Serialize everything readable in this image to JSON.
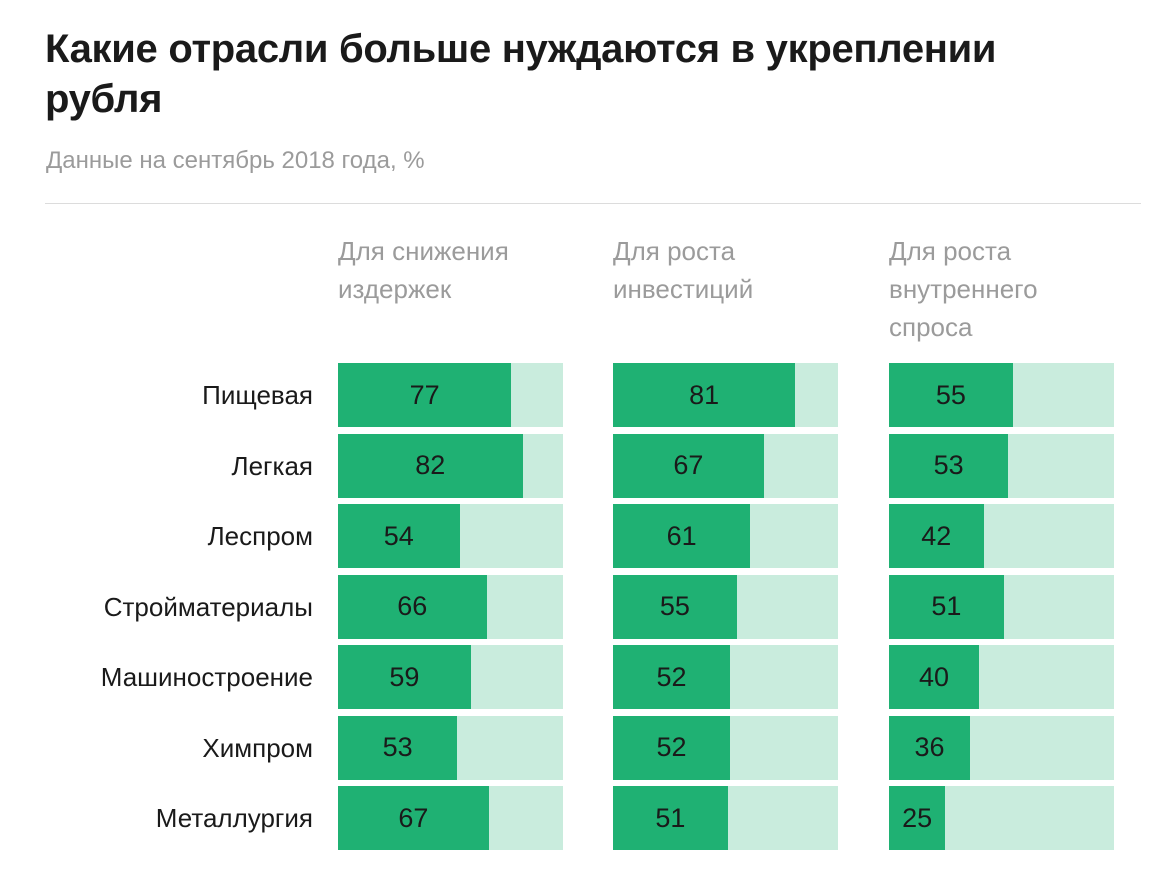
{
  "chart_data": {
    "type": "bar",
    "title": "Какие отрасли больше нуждаются в укреплении рубля",
    "subtitle": "Данные на сентябрь 2018 года, %",
    "categories": [
      "Пищевая",
      "Легкая",
      "Леспром",
      "Стройматериалы",
      "Машиностроение",
      "Химпром",
      "Металлургия"
    ],
    "series": [
      {
        "name": "Для снижения\nиздержек",
        "values": [
          77,
          82,
          54,
          66,
          59,
          53,
          67
        ]
      },
      {
        "name": "Для роста\nинвестиций",
        "values": [
          81,
          67,
          61,
          55,
          52,
          52,
          51
        ]
      },
      {
        "name": "Для роста\nвнутреннего\nспроса",
        "values": [
          55,
          53,
          42,
          51,
          40,
          36,
          25
        ]
      }
    ],
    "xlim": [
      0,
      100
    ],
    "colors": {
      "fill": "#1fb173",
      "track": "#c9ecdd"
    }
  }
}
